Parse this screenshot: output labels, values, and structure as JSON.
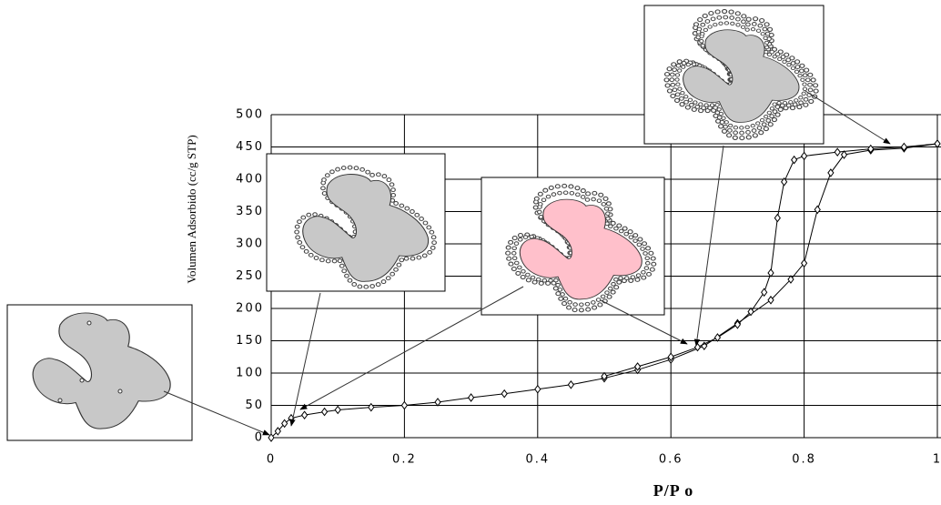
{
  "chart_data": {
    "type": "scatter",
    "y_label": "Volumen Adsorbido (cc/g STP)",
    "x_label": "P/P o",
    "xlim": [
      0,
      1
    ],
    "xticks": [
      0,
      0.2,
      0.4,
      0.6,
      0.8,
      1
    ],
    "ylim": [
      0,
      500
    ],
    "yticks": [
      0,
      50,
      100,
      150,
      200,
      250,
      300,
      350,
      400,
      450,
      500
    ],
    "grid": true,
    "series": [
      {
        "color": "#000000",
        "x": [
          0,
          0.01,
          0.02,
          0.03,
          0.05,
          0.08,
          0.1,
          0.15,
          0.2,
          0.25,
          0.3,
          0.35,
          0.4,
          0.45,
          0.5,
          0.55,
          0.6,
          0.65,
          0.7,
          0.75,
          0.78,
          0.8,
          0.82,
          0.84,
          0.86,
          0.9,
          0.95,
          1
        ],
        "values": [
          0,
          10,
          22,
          30,
          35,
          40,
          43,
          47,
          50,
          55,
          62,
          68,
          75,
          82,
          92,
          105,
          121,
          142,
          177,
          213,
          245,
          270,
          353,
          410,
          438,
          445,
          448,
          455
        ]
      },
      {
        "color": "#000000",
        "x": [
          1,
          0.95,
          0.9,
          0.85,
          0.8,
          0.785,
          0.77,
          0.76,
          0.75,
          0.74,
          0.72,
          0.7,
          0.67,
          0.64,
          0.6,
          0.55,
          0.5
        ],
        "values": [
          455,
          450,
          447,
          442,
          436,
          430,
          396,
          340,
          255,
          225,
          195,
          175,
          155,
          140,
          125,
          110,
          95
        ]
      }
    ]
  }
}
